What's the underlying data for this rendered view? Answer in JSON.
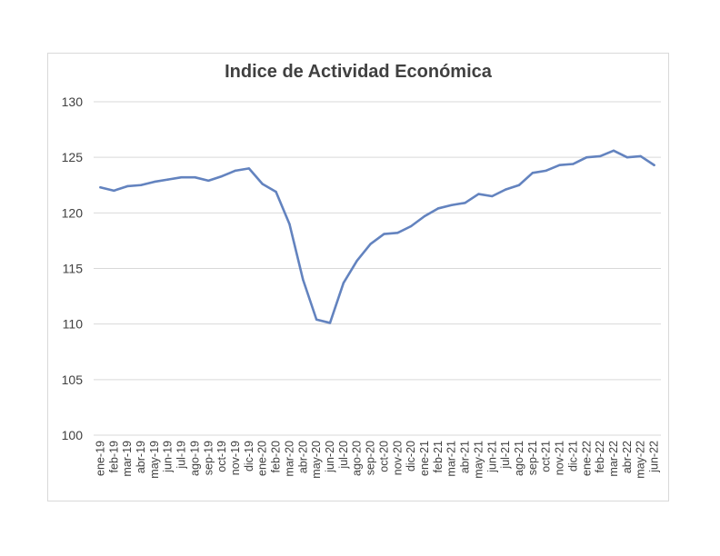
{
  "chart_data": {
    "type": "line",
    "title": "Indice de Actividad Económica",
    "xlabel": "",
    "ylabel": "",
    "ylim": [
      100,
      130
    ],
    "yticks": [
      100,
      105,
      110,
      115,
      120,
      125,
      130
    ],
    "grid": true,
    "legend": "none",
    "categories": [
      "ene-19",
      "feb-19",
      "mar-19",
      "abr-19",
      "may-19",
      "jun-19",
      "jul-19",
      "ago-19",
      "sep-19",
      "oct-19",
      "nov-19",
      "dic-19",
      "ene-20",
      "feb-20",
      "mar-20",
      "abr-20",
      "may-20",
      "jun-20",
      "jul-20",
      "ago-20",
      "sep-20",
      "oct-20",
      "nov-20",
      "dic-20",
      "ene-21",
      "feb-21",
      "mar-21",
      "abr-21",
      "may-21",
      "jun-21",
      "jul-21",
      "ago-21",
      "sep-21",
      "oct-21",
      "nov-21",
      "dic-21",
      "ene-22",
      "feb-22",
      "mar-22",
      "abr-22",
      "may-22",
      "jun-22"
    ],
    "series": [
      {
        "color": "#6383bf",
        "values": [
          122.3,
          122.0,
          122.4,
          122.5,
          122.8,
          123.0,
          123.2,
          123.2,
          122.9,
          123.3,
          123.8,
          124.0,
          122.6,
          121.9,
          119.0,
          114.0,
          110.4,
          110.1,
          113.7,
          115.7,
          117.2,
          118.1,
          118.2,
          118.8,
          119.7,
          120.4,
          120.7,
          120.9,
          121.7,
          121.5,
          122.1,
          122.5,
          123.6,
          123.8,
          124.3,
          124.4,
          125.0,
          125.1,
          125.6,
          125.0,
          125.1,
          124.3
        ]
      }
    ]
  }
}
